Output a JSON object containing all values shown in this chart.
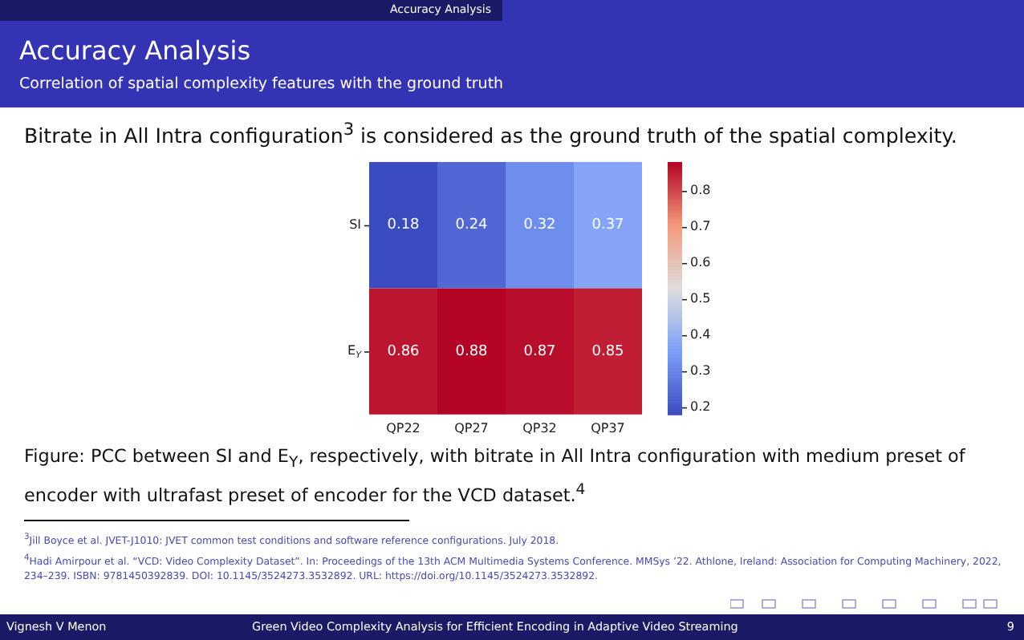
{
  "chart_data": {
    "type": "heatmap",
    "title": "Accuracy Analysis",
    "subtitle": "Correlation of spatial complexity features with the ground truth",
    "categories": [
      "QP22",
      "QP27",
      "QP32",
      "QP37"
    ],
    "y_categories": [
      "SI",
      "E$_{Y}$"
    ],
    "cells": [
      [
        0.18,
        0.24,
        0.32,
        0.37
      ],
      [
        0.86,
        0.88,
        0.87,
        0.85
      ]
    ],
    "data_labels": true,
    "clim": [
      0.18,
      0.88
    ],
    "cticks": [
      0.2,
      0.3,
      0.4,
      0.5,
      0.6,
      0.7,
      0.8
    ],
    "annotations": [
      "Accuracy Analysis",
      "Bitrate in All Intra configuration$^{3}$ is considered as the ground truth of the spatial complexity.",
      "Figure: PCC between SI and E$_{Y}$, respectively, with bitrate in All Intra configuration with medium preset of encoder with ultrafast preset of encoder for the VCD dataset.$^{4}$",
      "$^{3}$Jill Boyce et al. JVET-J1010: JVET common test conditions and software reference configurations. July 2018.",
      "$^{4}$Hadi Amirpour et al. “VCD: Video Complexity Dataset”. In: Proceedings of the 13th ACM Multimedia Systems Conference. MMSys ’22. Athlone, Ireland: Association for Computing Machinery, 2022, 234–239. ISBN: 9781450392839. DOI: 10.1145/3524273.3532892. URL: https://doi.org/10.1145/3524273.3532892.",
      "Vignesh V Menon",
      "Green Video Complexity Analysis for Efficient Encoding in Adaptive Video Streaming",
      "9"
    ]
  }
}
